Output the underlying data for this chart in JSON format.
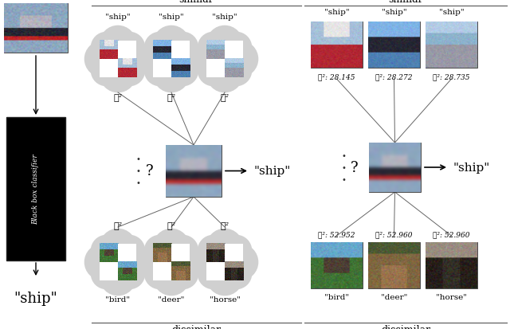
{
  "similar_labels_left": [
    "\"ship\"",
    "\"ship\"",
    "\"ship\""
  ],
  "similar_labels_right": [
    "\"ship\"",
    "\"ship\"",
    "\"ship\""
  ],
  "dissimilar_labels_left": [
    "\"bird\"",
    "\"deer\"",
    "\"horse\""
  ],
  "dissimilar_labels_right": [
    "\"bird\"",
    "\"deer\"",
    "\"horse\""
  ],
  "similar_l2_right": [
    "ℓ²: 28.145",
    "ℓ²: 28.272",
    "ℓ²: 28.735"
  ],
  "dissimilar_l2_right": [
    "ℓ²: 52.952",
    "ℓ²: 52.960",
    "ℓ²: 52.960"
  ],
  "l2_label": "ℓ²",
  "query_label": "\"ship\"",
  "question_mark": "?",
  "black_box_label": "Black box classifier",
  "input_label": "\"ship\"",
  "cloud_color": "#d0d0d0",
  "line_color": "#666666",
  "text_color": "#111111"
}
